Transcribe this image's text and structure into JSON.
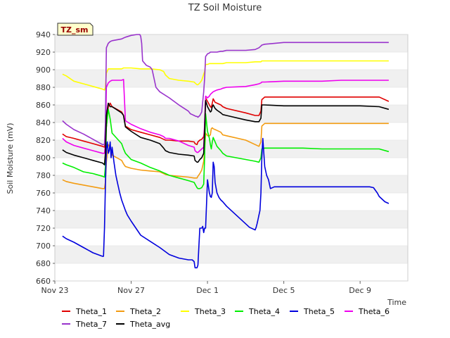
{
  "chart_data": {
    "type": "line",
    "title": "TZ Soil Moisture",
    "xlabel": "Time",
    "ylabel": "Soil Moisture (mV)",
    "badge": "TZ_sm",
    "ylim": [
      660,
      940
    ],
    "yticks": [
      660,
      680,
      700,
      720,
      740,
      760,
      780,
      800,
      820,
      840,
      860,
      880,
      900,
      920,
      940
    ],
    "xlim": [
      0,
      18.5
    ],
    "xticks": [
      {
        "x": 0,
        "label": "Nov 23"
      },
      {
        "x": 4,
        "label": "Nov 27"
      },
      {
        "x": 8,
        "label": "Dec 1"
      },
      {
        "x": 12,
        "label": "Dec 5"
      },
      {
        "x": 16,
        "label": "Dec 9"
      }
    ],
    "grid": "horizontal bands",
    "legend_position": "bottom",
    "series": [
      {
        "name": "Theta_1",
        "color": "#e00000",
        "x": [
          0.4,
          0.6,
          1.0,
          1.5,
          2.0,
          2.5,
          2.6,
          2.65,
          2.7,
          2.8,
          2.9,
          3.0,
          3.5,
          3.6,
          3.7,
          4.0,
          4.5,
          5.0,
          5.5,
          5.7,
          5.8,
          6.0,
          6.5,
          7.0,
          7.3,
          7.35,
          7.45,
          7.5,
          7.6,
          7.7,
          7.8,
          7.85,
          7.9,
          8.0,
          8.1,
          8.15,
          8.2,
          8.25,
          8.3,
          8.4,
          8.5,
          8.7,
          8.8,
          9.0,
          10.0,
          10.5,
          10.7,
          10.8,
          10.85,
          11.0,
          12.0,
          13.0,
          14.0,
          15.0,
          16.0,
          17.0,
          17.5
        ],
        "y": [
          827,
          824,
          822,
          819,
          816,
          813,
          812,
          820,
          835,
          858,
          862,
          858,
          852,
          848,
          836,
          832,
          829,
          826,
          823,
          821,
          820,
          820,
          819,
          819,
          818,
          816,
          815,
          818,
          820,
          821,
          824,
          834,
          868,
          864,
          860,
          858,
          857,
          862,
          867,
          863,
          862,
          860,
          858,
          856,
          851,
          848,
          848,
          853,
          866,
          869,
          869,
          869,
          869,
          869,
          869,
          869,
          864
        ]
      },
      {
        "name": "Theta_2",
        "color": "#f39c12",
        "x": [
          0.4,
          0.6,
          1.0,
          1.5,
          2.0,
          2.5,
          2.6,
          2.65,
          2.7,
          2.8,
          2.9,
          3.0,
          3.5,
          3.6,
          3.7,
          4.0,
          4.5,
          5.0,
          5.5,
          5.7,
          5.8,
          6.0,
          6.5,
          7.0,
          7.3,
          7.35,
          7.45,
          7.5,
          7.6,
          7.7,
          7.8,
          7.85,
          7.9,
          8.0,
          8.1,
          8.15,
          8.2,
          8.25,
          8.3,
          8.4,
          8.5,
          8.7,
          8.8,
          9.0,
          10.0,
          10.5,
          10.7,
          10.8,
          10.85,
          11.0,
          12.0,
          13.0,
          14.0,
          15.0,
          16.0,
          17.0,
          17.5
        ],
        "y": [
          775,
          773,
          771,
          769,
          767,
          765,
          765,
          772,
          795,
          815,
          812,
          803,
          797,
          793,
          790,
          788,
          786,
          785,
          784,
          782,
          781,
          780,
          779,
          778,
          777,
          777,
          777,
          779,
          782,
          786,
          796,
          808,
          828,
          825,
          825,
          826,
          833,
          834,
          833,
          832,
          831,
          829,
          826,
          825,
          820,
          815,
          813,
          818,
          836,
          839,
          839,
          839,
          839,
          839,
          839,
          839,
          839
        ]
      },
      {
        "name": "Theta_3",
        "color": "#ffff00",
        "x": [
          0.4,
          0.6,
          1.0,
          1.5,
          2.0,
          2.5,
          2.6,
          2.65,
          2.7,
          2.8,
          2.9,
          3.0,
          3.5,
          3.6,
          3.7,
          4.0,
          4.5,
          5.0,
          5.5,
          5.7,
          5.8,
          6.0,
          6.5,
          7.0,
          7.3,
          7.35,
          7.45,
          7.5,
          7.6,
          7.7,
          7.8,
          7.85,
          7.9,
          8.0,
          8.1,
          8.15,
          8.2,
          8.25,
          8.3,
          8.4,
          8.5,
          8.7,
          8.8,
          9.0,
          10.0,
          10.5,
          10.7,
          10.8,
          10.85,
          11.0,
          12.0,
          13.0,
          14.0,
          15.0,
          16.0,
          17.0,
          17.5
        ],
        "y": [
          895,
          893,
          887,
          884,
          881,
          878,
          877,
          880,
          896,
          901,
          901,
          901,
          901,
          902,
          902,
          902,
          901,
          901,
          900,
          898,
          894,
          890,
          888,
          887,
          886,
          885,
          883,
          883,
          885,
          888,
          895,
          898,
          906,
          906,
          907,
          907,
          907,
          907,
          907,
          907,
          907,
          907,
          907,
          908,
          908,
          909,
          909,
          909,
          910,
          910,
          910,
          910,
          910,
          910,
          910,
          910,
          910
        ]
      },
      {
        "name": "Theta_4",
        "color": "#00ee00",
        "x": [
          0.4,
          0.6,
          1.0,
          1.5,
          2.0,
          2.5,
          2.6,
          2.65,
          2.7,
          2.8,
          2.9,
          3.0,
          3.5,
          3.6,
          3.7,
          4.0,
          4.5,
          5.0,
          5.5,
          5.7,
          5.8,
          6.0,
          6.5,
          7.0,
          7.3,
          7.35,
          7.45,
          7.5,
          7.6,
          7.7,
          7.8,
          7.85,
          7.9,
          8.0,
          8.1,
          8.15,
          8.2,
          8.25,
          8.3,
          8.4,
          8.5,
          8.7,
          8.8,
          9.0,
          10.0,
          10.5,
          10.7,
          10.8,
          10.85,
          11.0,
          12.0,
          13.0,
          14.0,
          15.0,
          16.0,
          17.0,
          17.5
        ],
        "y": [
          794,
          792,
          789,
          784,
          782,
          779,
          778,
          790,
          835,
          855,
          844,
          828,
          816,
          810,
          805,
          798,
          794,
          789,
          785,
          783,
          782,
          780,
          777,
          774,
          772,
          770,
          766,
          765,
          765,
          766,
          770,
          800,
          850,
          830,
          822,
          815,
          810,
          818,
          823,
          818,
          813,
          808,
          805,
          802,
          798,
          796,
          795,
          800,
          810,
          811,
          811,
          811,
          810,
          810,
          810,
          810,
          807
        ]
      },
      {
        "name": "Theta_5",
        "color": "#0000dd",
        "x": [
          0.4,
          0.6,
          1.0,
          1.5,
          2.0,
          2.5,
          2.55,
          2.6,
          2.65,
          2.7,
          2.75,
          2.8,
          2.85,
          2.9,
          2.95,
          3.0,
          3.1,
          3.2,
          3.3,
          3.4,
          3.5,
          3.6,
          3.7,
          3.8,
          4.0,
          4.5,
          5.0,
          5.5,
          6.0,
          6.5,
          7.0,
          7.2,
          7.3,
          7.35,
          7.45,
          7.5,
          7.55,
          7.6,
          7.7,
          7.75,
          7.8,
          7.85,
          7.9,
          8.0,
          8.1,
          8.15,
          8.2,
          8.25,
          8.3,
          8.35,
          8.4,
          8.5,
          8.6,
          8.7,
          8.8,
          9.0,
          9.5,
          10.0,
          10.2,
          10.4,
          10.5,
          10.55,
          10.6,
          10.65,
          10.7,
          10.75,
          10.8,
          10.85,
          10.9,
          11.0,
          11.1,
          11.2,
          11.3,
          11.5,
          12.0,
          13.0,
          14.0,
          15.0,
          16.0,
          16.5,
          16.7,
          16.9,
          17.0,
          17.3,
          17.5
        ],
        "y": [
          711,
          708,
          704,
          698,
          692,
          688,
          688,
          720,
          768,
          810,
          818,
          805,
          808,
          818,
          800,
          812,
          795,
          780,
          770,
          760,
          752,
          746,
          740,
          735,
          728,
          712,
          705,
          698,
          690,
          686,
          684,
          684,
          682,
          675,
          675,
          678,
          700,
          720,
          720,
          722,
          715,
          720,
          720,
          775,
          760,
          756,
          755,
          760,
          795,
          790,
          772,
          760,
          755,
          752,
          750,
          745,
          735,
          725,
          721,
          719,
          718,
          721,
          725,
          730,
          735,
          740,
          760,
          800,
          822,
          790,
          780,
          775,
          765,
          767,
          767,
          767,
          767,
          767,
          767,
          767,
          766,
          760,
          756,
          750,
          748
        ]
      },
      {
        "name": "Theta_6",
        "color": "#ee00ee",
        "x": [
          0.4,
          0.6,
          1.0,
          1.5,
          2.0,
          2.5,
          2.6,
          2.65,
          2.7,
          2.8,
          2.9,
          3.0,
          3.5,
          3.6,
          3.7,
          4.0,
          4.5,
          5.0,
          5.5,
          5.7,
          5.8,
          6.0,
          6.5,
          7.0,
          7.3,
          7.35,
          7.45,
          7.5,
          7.6,
          7.7,
          7.8,
          7.85,
          7.9,
          8.0,
          8.1,
          8.15,
          8.2,
          8.25,
          8.3,
          8.4,
          8.5,
          8.7,
          8.8,
          9.0,
          10.0,
          10.5,
          10.7,
          10.8,
          10.85,
          11.0,
          12.0,
          13.0,
          14.0,
          15.0,
          16.0,
          17.0,
          17.5
        ],
        "y": [
          822,
          818,
          814,
          811,
          808,
          805,
          805,
          815,
          880,
          885,
          887,
          888,
          888,
          889,
          842,
          838,
          833,
          829,
          826,
          824,
          822,
          822,
          819,
          814,
          812,
          808,
          806,
          806,
          808,
          810,
          812,
          840,
          870,
          868,
          870,
          872,
          873,
          874,
          875,
          876,
          877,
          878,
          879,
          880,
          881,
          883,
          884,
          885,
          886,
          886,
          887,
          887,
          887,
          888,
          888,
          888,
          888
        ]
      },
      {
        "name": "Theta_7",
        "color": "#9933cc",
        "x": [
          0.4,
          0.6,
          1.0,
          1.5,
          2.0,
          2.5,
          2.6,
          2.65,
          2.7,
          2.8,
          2.9,
          3.0,
          3.5,
          3.6,
          3.7,
          4.0,
          4.3,
          4.45,
          4.5,
          4.55,
          4.6,
          4.8,
          5.0,
          5.1,
          5.2,
          5.3,
          5.5,
          6.0,
          6.5,
          7.0,
          7.1,
          7.2,
          7.3,
          7.4,
          7.45,
          7.5,
          7.6,
          7.7,
          7.8,
          7.85,
          7.9,
          8.0,
          8.1,
          8.15,
          8.2,
          8.25,
          8.3,
          8.4,
          8.5,
          8.7,
          8.8,
          9.0,
          10.0,
          10.5,
          10.7,
          10.8,
          10.85,
          11.0,
          12.0,
          13.0,
          14.0,
          15.0,
          16.0,
          17.0,
          17.5
        ],
        "y": [
          842,
          838,
          832,
          827,
          821,
          815,
          815,
          840,
          925,
          930,
          932,
          933,
          935,
          936,
          937,
          939,
          940,
          940,
          938,
          930,
          910,
          905,
          903,
          900,
          890,
          880,
          875,
          868,
          860,
          853,
          850,
          849,
          848,
          847,
          847,
          846,
          848,
          852,
          875,
          890,
          915,
          918,
          919,
          920,
          920,
          920,
          920,
          920,
          920,
          921,
          921,
          922,
          922,
          923,
          925,
          927,
          928,
          929,
          931,
          931,
          931,
          931,
          931,
          931,
          931
        ]
      },
      {
        "name": "Theta_avg",
        "color": "#000000",
        "x": [
          0.4,
          0.6,
          1.0,
          1.5,
          2.0,
          2.5,
          2.6,
          2.65,
          2.7,
          2.8,
          2.9,
          3.0,
          3.5,
          3.6,
          3.7,
          4.0,
          4.5,
          5.0,
          5.5,
          5.7,
          5.8,
          6.0,
          6.5,
          7.0,
          7.3,
          7.35,
          7.45,
          7.5,
          7.6,
          7.7,
          7.8,
          7.85,
          7.9,
          8.0,
          8.1,
          8.15,
          8.2,
          8.25,
          8.3,
          8.4,
          8.5,
          8.7,
          8.8,
          9.0,
          10.0,
          10.5,
          10.7,
          10.8,
          10.85,
          11.0,
          12.0,
          13.0,
          14.0,
          15.0,
          16.0,
          17.0,
          17.5
        ],
        "y": [
          809,
          806,
          803,
          800,
          797,
          794,
          792,
          805,
          848,
          862,
          858,
          858,
          851,
          848,
          835,
          830,
          823,
          820,
          816,
          811,
          808,
          806,
          804,
          803,
          802,
          797,
          795,
          795,
          798,
          800,
          805,
          830,
          865,
          858,
          854,
          852,
          853,
          858,
          860,
          856,
          854,
          851,
          849,
          848,
          843,
          841,
          841,
          845,
          860,
          860,
          859,
          859,
          859,
          859,
          859,
          858,
          855
        ]
      }
    ]
  }
}
